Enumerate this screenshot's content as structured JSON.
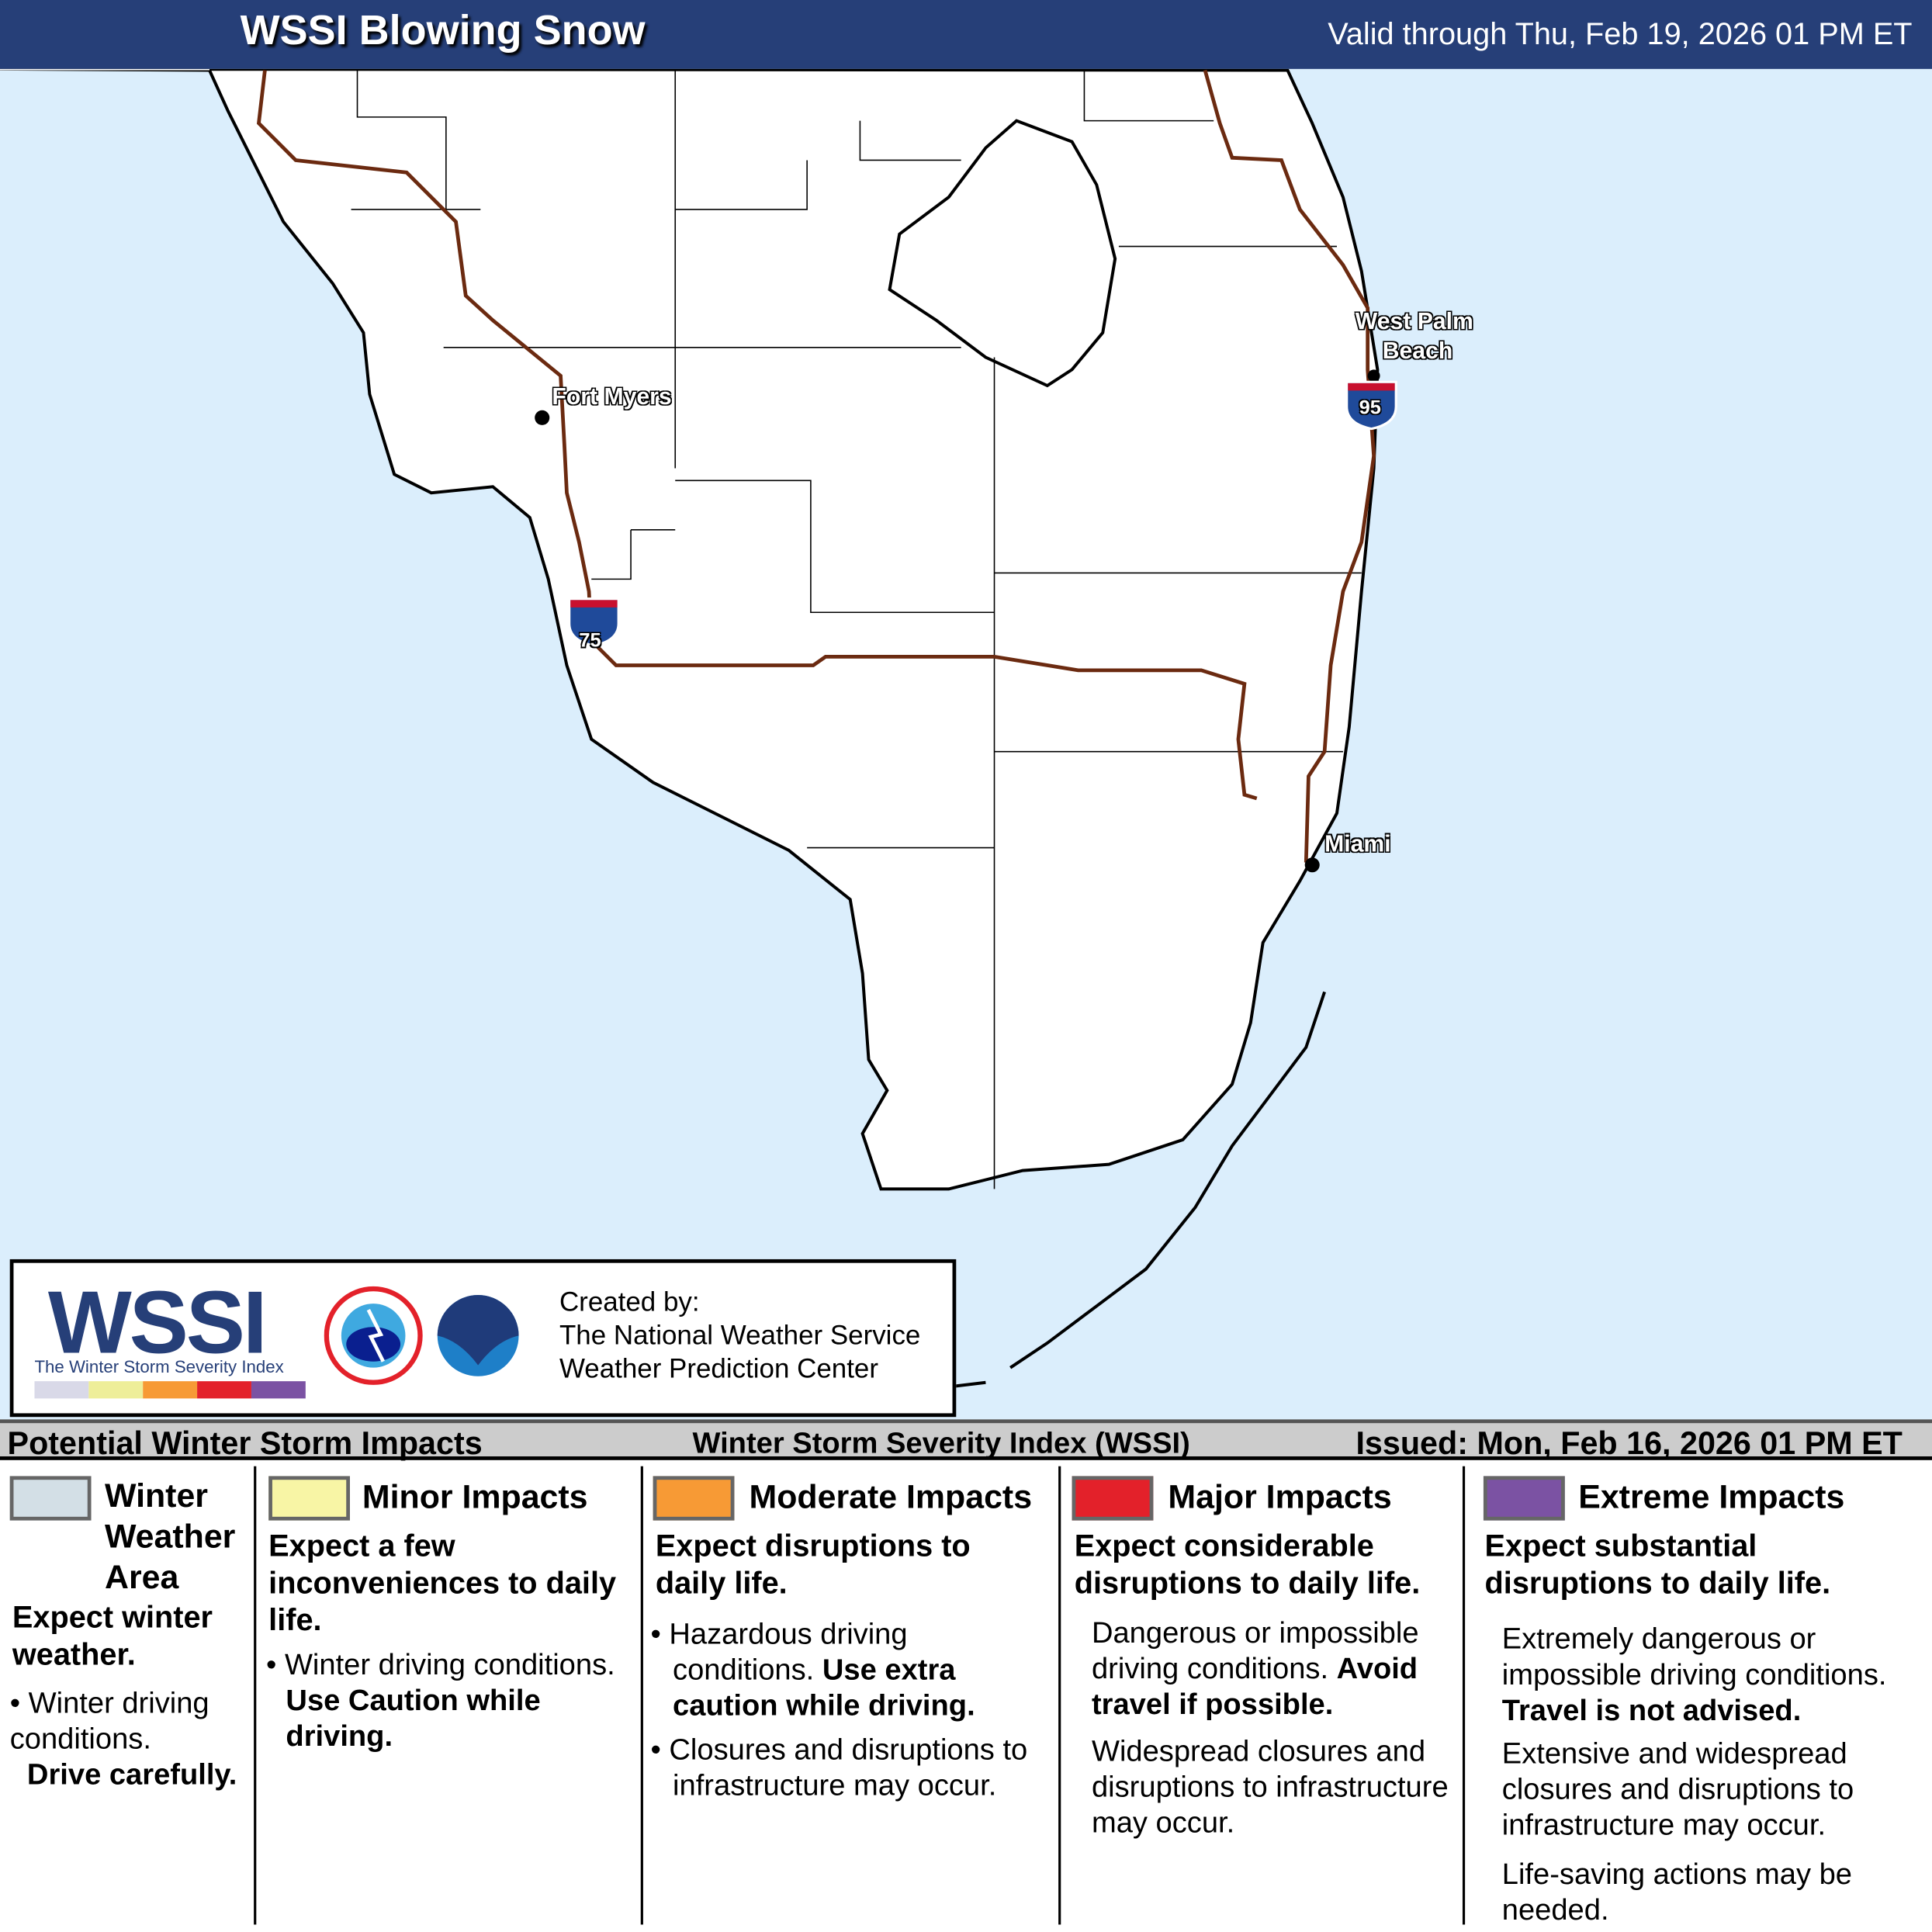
{
  "header": {
    "title": "WSSI Blowing Snow",
    "valid": "Valid through Thu, Feb 19, 2026 01 PM ET"
  },
  "map": {
    "cities": [
      "Fort Myers",
      "West Palm Beach",
      "Miami"
    ],
    "city_wpb_1": "West Palm",
    "city_wpb_2": "Beach",
    "interstates": [
      "75",
      "95"
    ],
    "colors": {
      "water": "#dbeefc",
      "land": "#ffffff",
      "roads": "#6b2a10",
      "interstate_shield": "#1f4a9a"
    }
  },
  "logo": {
    "wssi": "WSSI",
    "subtitle": "The Winter Storm Severity Index",
    "created_by": "Created by:",
    "org1": "The National Weather Service",
    "org2": "Weather Prediction Center",
    "strip_colors": [
      "#d9d9e8",
      "#eeee99",
      "#f79a35",
      "#e3212a",
      "#7b52a3"
    ]
  },
  "bar": {
    "left": "Potential Winter Storm Impacts",
    "center": "Winter Storm Severity Index (WSSI)",
    "issued": "Issued: Mon, Feb 16, 2026 01 PM ET"
  },
  "legend": [
    {
      "title1": "Winter",
      "title2": "Weather",
      "title3": "Area",
      "color": "#d3dfe6",
      "summary": "Expect winter weather.",
      "bullet": "Winter driving conditions.",
      "bullet_bold": "Drive carefully."
    },
    {
      "title": "Minor Impacts",
      "color": "#f8f5a5",
      "summary": "Expect a few inconveniences to daily life.",
      "bullet": "Winter driving conditions.",
      "bullet_bold": "Use Caution while driving."
    },
    {
      "title": "Moderate Impacts",
      "color": "#f79a35",
      "summary": "Expect disruptions to daily life.",
      "bullet": "Hazardous driving conditions.",
      "bullet_bold": "Use extra caution while driving.",
      "bullet2": "Closures and disruptions to infrastructure may occur."
    },
    {
      "title": "Major Impacts",
      "color": "#e3212a",
      "summary": "Expect considerable disruptions to daily life.",
      "text1": "Dangerous or impossible driving conditions.",
      "text1_bold": "Avoid travel if possible.",
      "text2": "Widespread closures and disruptions to infrastructure may occur."
    },
    {
      "title": "Extreme Impacts",
      "color": "#7b52a3",
      "summary": "Expect substantial disruptions to daily life.",
      "text1": "Extremely dangerous or impossible driving conditions.",
      "text1_bold": "Travel is not advised.",
      "text2": "Extensive and widespread closures and disruptions to infrastructure may occur.",
      "text3": "Life-saving actions may be needed."
    }
  ]
}
